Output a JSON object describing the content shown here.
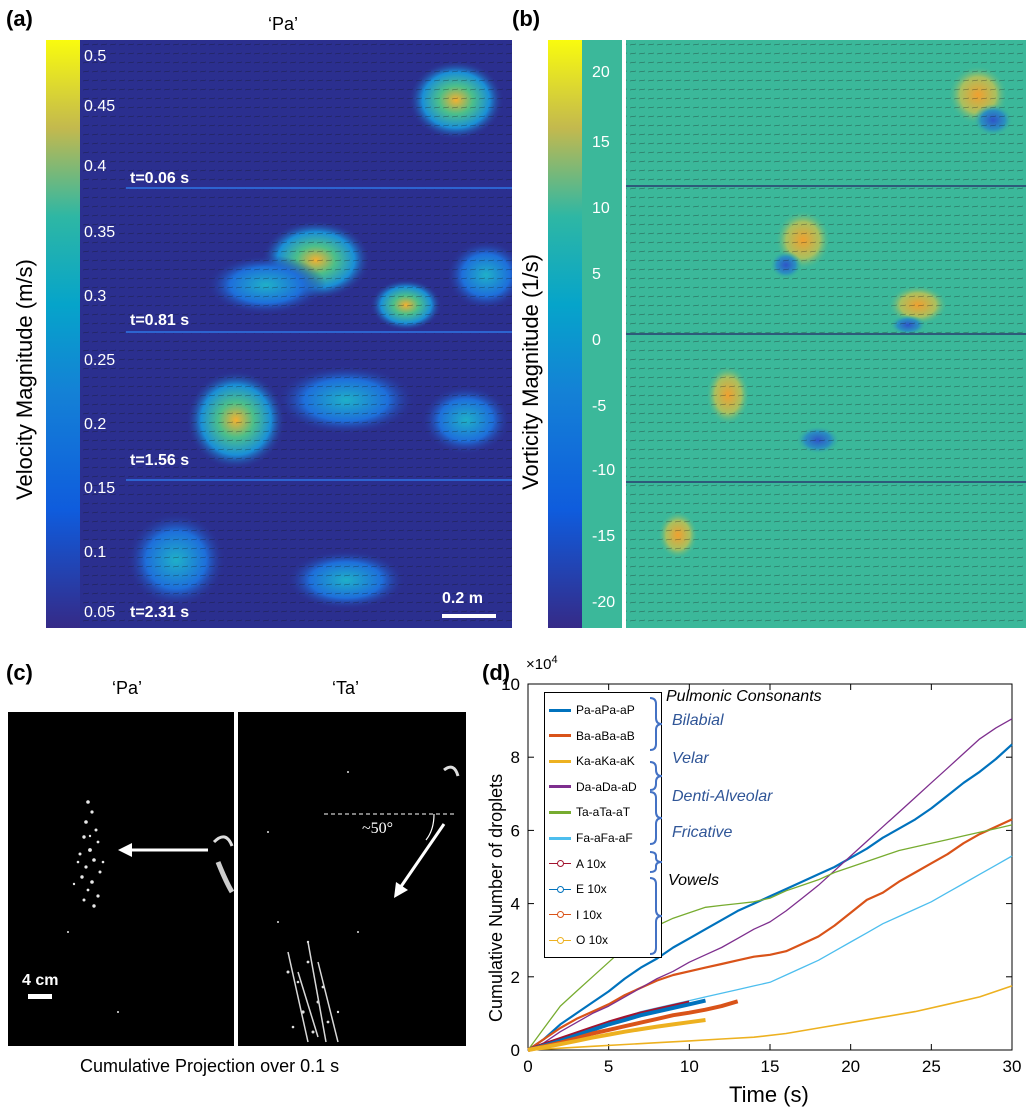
{
  "panel_a": {
    "letter": "(a)",
    "title": "‘Pa’",
    "colorbar_label": "Velocity Magnitude (m/s)",
    "colorbar_ticks": [
      "0.5",
      "0.45",
      "0.4",
      "0.35",
      "0.3",
      "0.25",
      "0.2",
      "0.15",
      "0.1",
      "0.05"
    ],
    "time_labels": [
      "t=0.06 s",
      "t=0.81 s",
      "t=1.56 s",
      "t=2.31 s"
    ],
    "scale_bar": "0.2 m",
    "colors": {
      "background": "#2b2f8f",
      "low": "#2f3aa0",
      "mid": "#1ea5c8",
      "high": "#f5b030"
    }
  },
  "panel_b": {
    "letter": "(b)",
    "colorbar_label": "Vorticity Magnitude (1/s)",
    "colorbar_ticks": [
      "20",
      "15",
      "10",
      "5",
      "0",
      "-5",
      "-10",
      "-15",
      "-20"
    ],
    "colors": {
      "background": "#3bb89a",
      "pos": "#f0a030",
      "neg": "#2e55c8"
    }
  },
  "panel_c": {
    "letter": "(c)",
    "left_title": "‘Pa’",
    "right_title": "‘Ta’",
    "angle_label": "~50°",
    "scale_bar": "4 cm",
    "caption": "Cumulative Projection over 0.1 s"
  },
  "chart_data": {
    "type": "line",
    "letter": "(d)",
    "xlabel": "Time (s)",
    "ylabel": "Cumulative Number of droplets",
    "y_exponent": "×10",
    "y_exponent_power": "4",
    "xlim": [
      0,
      30
    ],
    "ylim": [
      0,
      10
    ],
    "x_ticks": [
      "0",
      "5",
      "10",
      "15",
      "20",
      "25",
      "30"
    ],
    "y_ticks": [
      "0",
      "2",
      "4",
      "6",
      "8",
      "10"
    ],
    "grid": false,
    "legend_position": "top-left",
    "series": [
      {
        "name": "Pa-aPa-aP",
        "color": "#0072bd",
        "width": 2.2,
        "x": [
          0,
          1,
          2,
          3,
          4,
          5,
          6,
          7,
          8,
          9,
          10,
          11,
          12,
          13,
          14,
          15,
          16,
          17,
          18,
          19,
          20,
          21,
          22,
          23,
          24,
          25,
          26,
          27,
          28,
          29,
          30
        ],
        "y": [
          0,
          0.3,
          0.7,
          1.0,
          1.3,
          1.6,
          1.95,
          2.25,
          2.5,
          2.8,
          3.05,
          3.3,
          3.55,
          3.8,
          4.0,
          4.2,
          4.4,
          4.6,
          4.8,
          5.0,
          5.25,
          5.5,
          5.8,
          6.05,
          6.3,
          6.6,
          6.95,
          7.3,
          7.6,
          7.95,
          8.35
        ]
      },
      {
        "name": "Ba-aBa-aB",
        "color": "#d95319",
        "width": 2.2,
        "x": [
          0,
          1,
          2,
          3,
          4,
          5,
          6,
          7,
          8,
          9,
          10,
          11,
          12,
          13,
          14,
          15,
          16,
          17,
          18,
          19,
          20,
          21,
          22,
          23,
          24,
          25,
          26,
          27,
          28,
          29,
          30
        ],
        "y": [
          0,
          0.3,
          0.6,
          0.85,
          1.05,
          1.25,
          1.5,
          1.7,
          1.9,
          2.05,
          2.15,
          2.25,
          2.35,
          2.45,
          2.55,
          2.6,
          2.7,
          2.9,
          3.1,
          3.4,
          3.75,
          4.1,
          4.3,
          4.6,
          4.85,
          5.1,
          5.35,
          5.65,
          5.9,
          6.1,
          6.3
        ]
      },
      {
        "name": "Ka-aKa-aK",
        "color": "#edb120",
        "width": 1.6,
        "x": [
          0,
          2,
          4,
          6,
          8,
          10,
          12,
          14,
          16,
          18,
          20,
          22,
          24,
          26,
          28,
          30
        ],
        "y": [
          0,
          0.05,
          0.1,
          0.15,
          0.2,
          0.25,
          0.3,
          0.35,
          0.45,
          0.6,
          0.75,
          0.9,
          1.05,
          1.25,
          1.45,
          1.75
        ]
      },
      {
        "name": "Da-aDa-aD",
        "color": "#7e2f8e",
        "width": 1.3,
        "x": [
          0,
          1,
          2,
          3,
          4,
          5,
          6,
          7,
          8,
          9,
          10,
          11,
          12,
          13,
          14,
          15,
          16,
          17,
          18,
          19,
          20,
          21,
          22,
          23,
          24,
          25,
          26,
          27,
          28,
          29,
          30
        ],
        "y": [
          0,
          0.2,
          0.5,
          0.75,
          1.0,
          1.2,
          1.45,
          1.7,
          1.95,
          2.15,
          2.4,
          2.6,
          2.8,
          3.05,
          3.3,
          3.5,
          3.8,
          4.15,
          4.5,
          4.9,
          5.3,
          5.7,
          6.1,
          6.5,
          6.9,
          7.3,
          7.7,
          8.1,
          8.5,
          8.8,
          9.05
        ]
      },
      {
        "name": "Ta-aTa-aT",
        "color": "#77ac30",
        "width": 1.3,
        "x": [
          0,
          1,
          2,
          3,
          4,
          5,
          6,
          7,
          8,
          9,
          10,
          11,
          12,
          13,
          14,
          15,
          16,
          17,
          18,
          19,
          20,
          21,
          22,
          23,
          24,
          25,
          26,
          27,
          28,
          29,
          30
        ],
        "y": [
          0,
          0.6,
          1.2,
          1.6,
          2.0,
          2.4,
          2.8,
          3.2,
          3.4,
          3.6,
          3.75,
          3.9,
          3.95,
          4.0,
          4.05,
          4.15,
          4.35,
          4.5,
          4.65,
          4.85,
          5.0,
          5.15,
          5.3,
          5.45,
          5.55,
          5.65,
          5.75,
          5.85,
          5.95,
          6.05,
          6.15
        ]
      },
      {
        "name": "Fa-aFa-aF",
        "color": "#4dbeee",
        "width": 1.3,
        "x": [
          0,
          1,
          2,
          3,
          4,
          5,
          6,
          7,
          8,
          9,
          10,
          11,
          12,
          13,
          14,
          15,
          16,
          17,
          18,
          19,
          20,
          21,
          22,
          23,
          24,
          25,
          26,
          27,
          28,
          29,
          30
        ],
        "y": [
          0,
          0.15,
          0.3,
          0.45,
          0.6,
          0.75,
          0.9,
          1.05,
          1.15,
          1.25,
          1.35,
          1.45,
          1.55,
          1.65,
          1.75,
          1.85,
          2.05,
          2.25,
          2.45,
          2.7,
          2.95,
          3.2,
          3.45,
          3.65,
          3.85,
          4.05,
          4.3,
          4.55,
          4.8,
          5.05,
          5.3
        ]
      },
      {
        "name": "A 10x",
        "color": "#a2142f",
        "width": 4,
        "x": [
          0,
          1,
          2,
          3,
          4,
          5,
          6,
          7,
          8,
          9,
          10
        ],
        "y": [
          0,
          0.15,
          0.3,
          0.45,
          0.6,
          0.75,
          0.88,
          1.0,
          1.1,
          1.2,
          1.3
        ]
      },
      {
        "name": "E 10x",
        "color": "#0072bd",
        "width": 4,
        "x": [
          0,
          1,
          2,
          3,
          4,
          5,
          6,
          7,
          8,
          9,
          10,
          11
        ],
        "y": [
          0,
          0.12,
          0.25,
          0.4,
          0.55,
          0.7,
          0.82,
          0.95,
          1.05,
          1.15,
          1.25,
          1.35
        ]
      },
      {
        "name": "I 10x",
        "color": "#d95319",
        "width": 4,
        "x": [
          0,
          1,
          2,
          3,
          4,
          5,
          6,
          7,
          8,
          9,
          10,
          11,
          12,
          13
        ],
        "y": [
          0,
          0.1,
          0.2,
          0.32,
          0.45,
          0.55,
          0.65,
          0.75,
          0.85,
          0.95,
          1.02,
          1.1,
          1.2,
          1.33
        ]
      },
      {
        "name": "O 10x",
        "color": "#edb120",
        "width": 4,
        "x": [
          0,
          1,
          2,
          3,
          4,
          5,
          6,
          7,
          8,
          9,
          10,
          11
        ],
        "y": [
          0,
          0.08,
          0.16,
          0.25,
          0.34,
          0.42,
          0.5,
          0.57,
          0.64,
          0.7,
          0.76,
          0.82
        ]
      }
    ],
    "annotations": {
      "header": "Pulmonic Consonants",
      "groups": [
        "Bilabial",
        "Velar",
        "Denti-Alveolar",
        "Fricative",
        "Vowels"
      ]
    }
  }
}
